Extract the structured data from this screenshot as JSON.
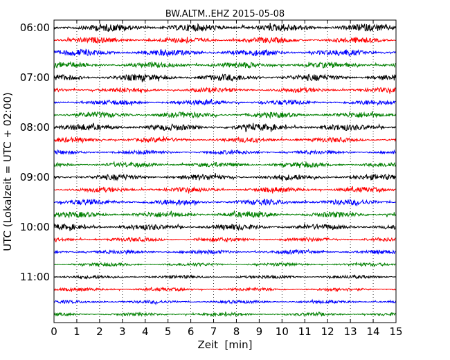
{
  "chart_data": {
    "type": "line",
    "title": "BW.ALTM..EHZ 2015-05-08",
    "xlabel": "Zeit  [min]",
    "ylabel": "UTC (Lokalzeit = UTC + 02:00)",
    "xlim": [
      0,
      15
    ],
    "xticks": [
      "0",
      "1",
      "2",
      "3",
      "4",
      "5",
      "6",
      "7",
      "8",
      "9",
      "10",
      "11",
      "12",
      "13",
      "14",
      "15"
    ],
    "yticks": [
      "06:00",
      "07:00",
      "08:00",
      "09:00",
      "10:00",
      "11:00"
    ],
    "grid": "vertical-dotted",
    "trace_colors": [
      "#000000",
      "#ff0000",
      "#0000ff",
      "#008000"
    ],
    "trace_interval_min": 15,
    "start_time": "06:00",
    "traces": [
      {
        "start": "06:00",
        "amplitude": 0.9
      },
      {
        "start": "06:15",
        "amplitude": 0.7
      },
      {
        "start": "06:30",
        "amplitude": 0.8
      },
      {
        "start": "06:45",
        "amplitude": 0.7
      },
      {
        "start": "07:00",
        "amplitude": 0.8
      },
      {
        "start": "07:15",
        "amplitude": 0.6
      },
      {
        "start": "07:30",
        "amplitude": 0.6
      },
      {
        "start": "07:45",
        "amplitude": 0.7
      },
      {
        "start": "08:00",
        "amplitude": 0.8
      },
      {
        "start": "08:15",
        "amplitude": 0.6
      },
      {
        "start": "08:30",
        "amplitude": 0.5
      },
      {
        "start": "08:45",
        "amplitude": 0.6
      },
      {
        "start": "09:00",
        "amplitude": 0.7
      },
      {
        "start": "09:15",
        "amplitude": 0.6
      },
      {
        "start": "09:30",
        "amplitude": 0.7
      },
      {
        "start": "09:45",
        "amplitude": 0.7
      },
      {
        "start": "10:00",
        "amplitude": 0.7
      },
      {
        "start": "10:15",
        "amplitude": 0.5
      },
      {
        "start": "10:30",
        "amplitude": 0.5
      },
      {
        "start": "10:45",
        "amplitude": 0.4
      },
      {
        "start": "11:00",
        "amplitude": 0.4
      },
      {
        "start": "11:15",
        "amplitude": 0.4
      },
      {
        "start": "11:30",
        "amplitude": 0.4
      },
      {
        "start": "11:45",
        "amplitude": 0.4
      }
    ]
  }
}
